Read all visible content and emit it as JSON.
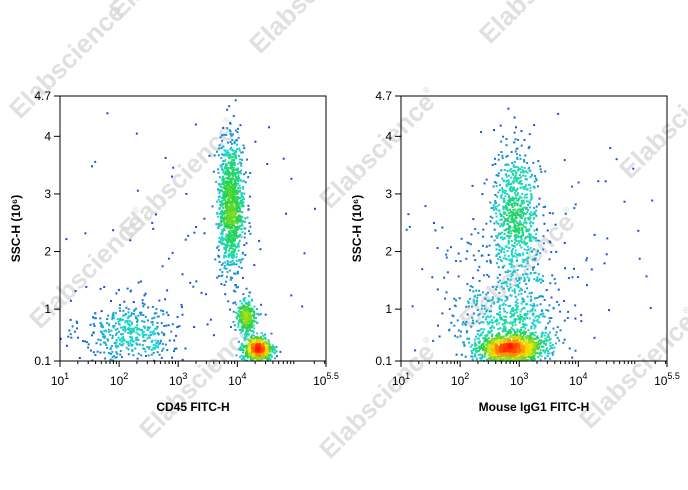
{
  "watermark": {
    "text": "Elabscience",
    "mark": "®"
  },
  "colors": {
    "background": "#ffffff",
    "axis": "#000000",
    "density_low": "#1a2cd0",
    "density_mid": "#19d7d0",
    "density_high": "#ff1a00"
  },
  "chart_data": [
    {
      "type": "scatter",
      "title": "",
      "xlabel": "CD45 FITC-H",
      "ylabel": "SSC-H (10⁶)",
      "xscale": "log",
      "xlim": [
        10,
        316228
      ],
      "ylim": [
        0.1,
        4.7
      ],
      "xticks": [
        {
          "value": 10,
          "base": "10",
          "exp": "1"
        },
        {
          "value": 100,
          "base": "10",
          "exp": "2"
        },
        {
          "value": 1000,
          "base": "10",
          "exp": "3"
        },
        {
          "value": 10000,
          "base": "10",
          "exp": "4"
        },
        {
          "value": 316228,
          "base": "10",
          "exp": "5.5"
        }
      ],
      "yticks": [
        {
          "value": 0.1,
          "label": "0.1"
        },
        {
          "value": 1,
          "label": "1"
        },
        {
          "value": 2,
          "label": "2"
        },
        {
          "value": 3,
          "label": "3"
        },
        {
          "value": 4,
          "label": "4"
        },
        {
          "value": 4.7,
          "label": "4.7"
        }
      ],
      "grid": false,
      "legend": "none",
      "encoding": "density",
      "populations": [
        {
          "x_log10": 2.2,
          "y": 0.6,
          "sx": 0.42,
          "sy": 0.28,
          "share": 0.16
        },
        {
          "x_log10": 3.9,
          "y": 2.8,
          "sx": 0.11,
          "sy": 0.55,
          "share": 0.42
        },
        {
          "x_log10": 4.15,
          "y": 0.85,
          "sx": 0.08,
          "sy": 0.16,
          "share": 0.12
        },
        {
          "x_log10": 4.35,
          "y": 0.3,
          "sx": 0.12,
          "sy": 0.1,
          "share": 0.26
        },
        {
          "x_log10": 3.2,
          "y": 2.0,
          "sx": 1.3,
          "sy": 1.5,
          "share": 0.04
        }
      ]
    },
    {
      "type": "scatter",
      "title": "",
      "xlabel": "Mouse IgG1 FITC-H",
      "ylabel": "SSC-H (10⁶)",
      "xscale": "log",
      "xlim": [
        10,
        316228
      ],
      "ylim": [
        0.1,
        4.7
      ],
      "xticks": [
        {
          "value": 10,
          "base": "10",
          "exp": "1"
        },
        {
          "value": 100,
          "base": "10",
          "exp": "2"
        },
        {
          "value": 1000,
          "base": "10",
          "exp": "3"
        },
        {
          "value": 10000,
          "base": "10",
          "exp": "4"
        },
        {
          "value": 316228,
          "base": "10",
          "exp": "5.5"
        }
      ],
      "yticks": [
        {
          "value": 0.1,
          "label": "0.1"
        },
        {
          "value": 1,
          "label": "1"
        },
        {
          "value": 2,
          "label": "2"
        },
        {
          "value": 3,
          "label": "3"
        },
        {
          "value": 4,
          "label": "4"
        },
        {
          "value": 4.7,
          "label": "4.7"
        }
      ],
      "grid": false,
      "legend": "none",
      "encoding": "density",
      "populations": [
        {
          "x_log10": 2.85,
          "y": 0.32,
          "sx": 0.28,
          "sy": 0.12,
          "share": 0.46
        },
        {
          "x_log10": 2.9,
          "y": 0.8,
          "sx": 0.45,
          "sy": 0.25,
          "share": 0.14
        },
        {
          "x_log10": 2.95,
          "y": 2.6,
          "sx": 0.2,
          "sy": 0.6,
          "share": 0.28
        },
        {
          "x_log10": 3.3,
          "y": 2.2,
          "sx": 1.2,
          "sy": 1.4,
          "share": 0.04
        },
        {
          "x_log10": 2.7,
          "y": 1.3,
          "sx": 0.55,
          "sy": 0.6,
          "share": 0.08
        }
      ]
    }
  ]
}
